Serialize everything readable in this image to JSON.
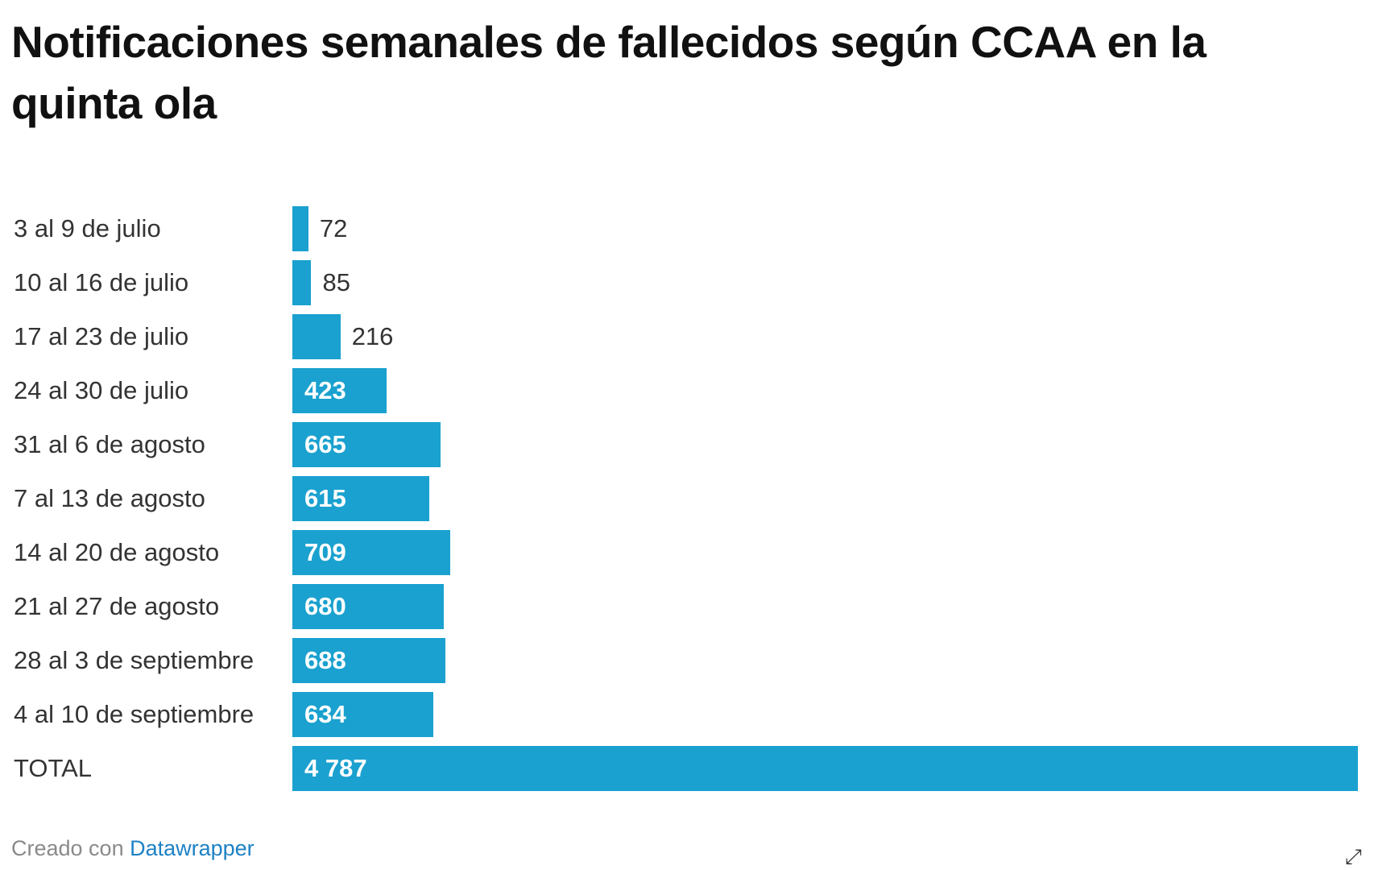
{
  "chart_data": {
    "type": "bar",
    "orientation": "horizontal",
    "title": "Notificaciones semanales de fallecidos según CCAA en la quinta ola",
    "categories": [
      "3 al 9 de julio",
      "10 al 16 de julio",
      "17 al 23 de julio",
      "24 al 30 de julio",
      "31 al 6 de agosto",
      "7 al 13 de agosto",
      "14 al 20 de agosto",
      "21 al 27 de agosto",
      "28 al 3 de septiembre",
      "4 al 10 de septiembre",
      "TOTAL"
    ],
    "values": [
      72,
      85,
      216,
      423,
      665,
      615,
      709,
      680,
      688,
      634,
      4787
    ],
    "value_labels": [
      "72",
      "85",
      "216",
      "423",
      "665",
      "615",
      "709",
      "680",
      "688",
      "634",
      "4 787"
    ],
    "xlim": [
      0,
      4787
    ],
    "grid": false,
    "bar_color": "#1aa1cf"
  },
  "footer": {
    "prefix": "Creado con ",
    "link": "Datawrapper"
  },
  "icons": {
    "expand": "expand-arrow-icon"
  }
}
